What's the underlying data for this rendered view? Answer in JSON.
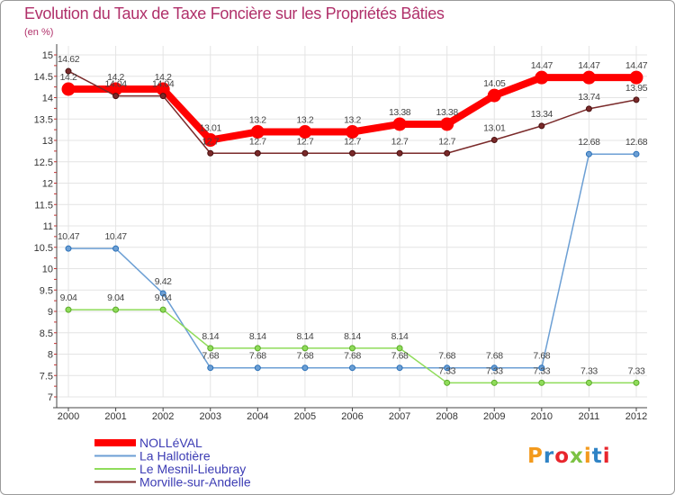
{
  "chart_data": {
    "type": "line",
    "title": "Evolution du Taux de Taxe Foncière sur les Propriétés Bâties",
    "subtitle": "(en %)",
    "xlabel": "",
    "ylabel": "(en %)",
    "ylim": [
      7,
      15
    ],
    "yticks": [
      "7",
      "7.5",
      "8",
      "8.5",
      "9",
      "9.5",
      "10",
      "10.5",
      "11",
      "11.5",
      "12",
      "12.5",
      "13",
      "13.5",
      "14",
      "14.5",
      "15"
    ],
    "categories": [
      "2000",
      "2001",
      "2002",
      "2003",
      "2004",
      "2005",
      "2006",
      "2007",
      "2008",
      "2009",
      "2010",
      "2011",
      "2012"
    ],
    "grid": true,
    "legend_position": "bottom-left",
    "series": [
      {
        "name": "NOLLéVAL",
        "color": "#ff0000",
        "values": [
          14.2,
          14.2,
          14.2,
          13.01,
          13.2,
          13.2,
          13.2,
          13.38,
          13.38,
          14.05,
          14.47,
          14.47,
          14.47
        ],
        "labels": [
          "14.2",
          "14.2",
          "14.2",
          "13.01",
          "13.2",
          "13.2",
          "13.2",
          "13.38",
          "13.38",
          "14.05",
          "14.47",
          "14.47",
          "14.47"
        ]
      },
      {
        "name": "La Hallotière",
        "color": "#6c9fd4",
        "values": [
          10.47,
          10.47,
          9.42,
          7.68,
          7.68,
          7.68,
          7.68,
          7.68,
          7.68,
          7.68,
          7.68,
          12.68,
          12.68
        ],
        "labels": [
          "10.47",
          "10.47",
          "9.42",
          "7.68",
          "7.68",
          "7.68",
          "7.68",
          "7.68",
          "7.68",
          "7.68",
          "7.68",
          "12.68",
          "12.68"
        ]
      },
      {
        "name": "Le Mesnil-Lieubray",
        "color": "#8fdc5a",
        "values": [
          9.04,
          9.04,
          9.04,
          8.14,
          8.14,
          8.14,
          8.14,
          8.14,
          7.33,
          7.33,
          7.33,
          7.33,
          7.33
        ],
        "labels": [
          "9.04",
          "9.04",
          "9.04",
          "8.14",
          "8.14",
          "8.14",
          "8.14",
          "8.14",
          "7.33",
          "7.33",
          "7.33",
          "7.33",
          "7.33"
        ]
      },
      {
        "name": "Morville-sur-Andelle",
        "color": "#7a2a2a",
        "values": [
          14.62,
          14.04,
          14.04,
          12.7,
          12.7,
          12.7,
          12.7,
          12.7,
          12.7,
          13.01,
          13.34,
          13.74,
          13.95
        ],
        "labels": [
          "14.62",
          "14.04",
          "14.04",
          "12.7",
          "12.7",
          "12.7",
          "12.7",
          "12.7",
          "12.7",
          "13.01",
          "13.34",
          "13.74",
          "13.95"
        ]
      }
    ]
  },
  "logo": {
    "text": "Proxiti",
    "colors": [
      "#f39a1d",
      "#2f83c5",
      "#e8262d",
      "#7cc243",
      "#f39a1d",
      "#2f83c5",
      "#e8262d"
    ]
  }
}
